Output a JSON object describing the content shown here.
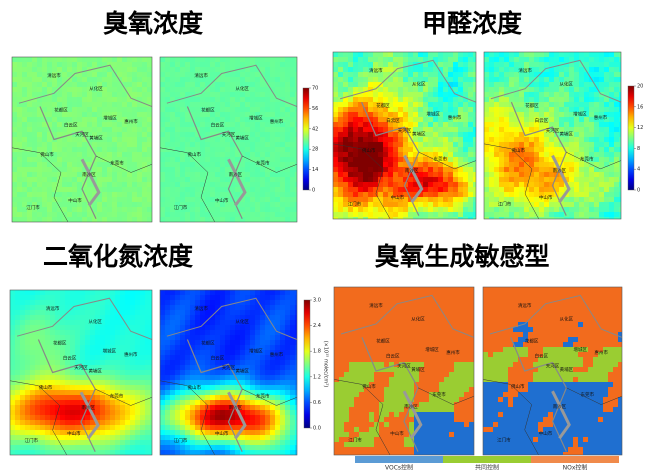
{
  "panels": [
    {
      "title": "臭氧浓度",
      "colorbar": {
        "ticks": [
          0,
          14,
          28,
          42,
          56,
          70
        ]
      }
    },
    {
      "title": "甲醛浓度",
      "colorbar": {
        "ticks": [
          0,
          4,
          8,
          12,
          16,
          20
        ]
      }
    },
    {
      "title": "二氧化氮浓度",
      "colorbar": {
        "label": "(×10¹⁵ molec/cm²)",
        "ticks": [
          {
            "value": 0,
            "label": "0.0"
          },
          0.6,
          1.2,
          1.8,
          2.4,
          {
            "value": 3,
            "label": "3.0"
          }
        ]
      }
    },
    {
      "title": "臭氧生成敏感型",
      "legend": [
        "VOCs控制",
        "共同控制",
        "NOx控制"
      ]
    }
  ],
  "cities": [
    "清远市",
    "从化区",
    "花都区",
    "白云区",
    "增城区",
    "天河区",
    "黄埔区",
    "惠州市",
    "佛山市",
    "东莞市",
    "南沙区",
    "中山市",
    "江门市"
  ]
}
